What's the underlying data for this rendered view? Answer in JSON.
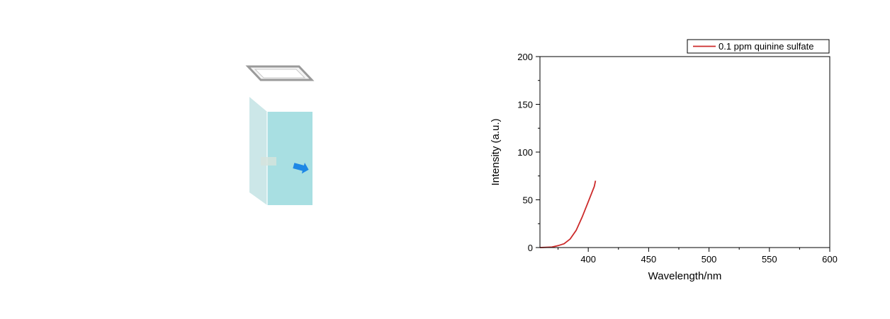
{
  "chart_data": {
    "type": "line",
    "xlabel": "Wavelength/nm",
    "ylabel": "Intensity (a.u.)",
    "xlim": [
      360,
      600
    ],
    "ylim": [
      0,
      200
    ],
    "x_ticks": [
      400,
      450,
      500,
      550,
      600
    ],
    "y_ticks": [
      0,
      50,
      100,
      150,
      200
    ],
    "grid": false,
    "legend_position": "top-right",
    "series": [
      {
        "name": "0.1 ppm quinine sulfate",
        "color": "#cc2a2a",
        "x": [
          360,
          370,
          375,
          380,
          385,
          390,
          395,
          400,
          405,
          406
        ],
        "y": [
          0,
          0.5,
          2,
          4,
          9,
          18,
          32,
          48,
          64,
          70
        ]
      }
    ]
  },
  "illustration": {
    "cuvette_color": "#a8dfe2",
    "lid_color": "#9a9a9a",
    "arrow_color": "#1e88e5"
  }
}
